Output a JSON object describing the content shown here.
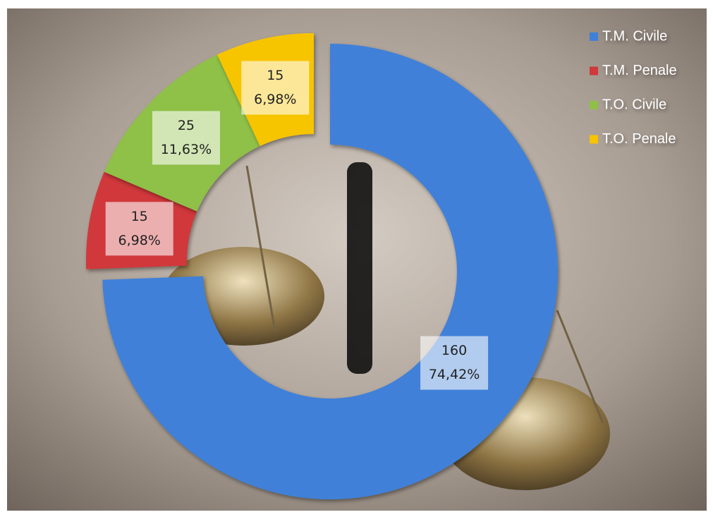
{
  "chart_data": {
    "type": "donut",
    "categories": [
      "T.M. Civile",
      "T.M. Penale",
      "T.O. Civile",
      "T.O. Penale"
    ],
    "values": [
      160,
      15,
      25,
      15
    ],
    "percentage_labels": [
      "74,42%",
      "6,98%",
      "11,63%",
      "6,98%"
    ],
    "colors": [
      "#3f80d8",
      "#d0383b",
      "#8fc046",
      "#f7c400"
    ],
    "legend": "top-right"
  }
}
